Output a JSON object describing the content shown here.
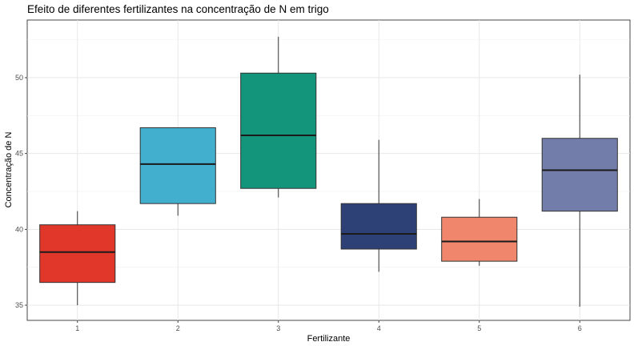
{
  "chart_data": {
    "type": "boxplot",
    "title": "Efeito de diferentes fertilizantes na concentração de N em trigo",
    "xlabel": "Fertilizante",
    "ylabel": "Concentração de N",
    "categories": [
      "1",
      "2",
      "3",
      "4",
      "5",
      "6"
    ],
    "ylim": [
      34,
      53.8
    ],
    "yticks": [
      35,
      40,
      45,
      50
    ],
    "grid": true,
    "legend": "none",
    "boxes": [
      {
        "category": "1",
        "min": 35.0,
        "q1": 36.5,
        "median": 38.5,
        "q3": 40.3,
        "max": 41.2,
        "color": "#E1362A"
      },
      {
        "category": "2",
        "min": 40.9,
        "q1": 41.7,
        "median": 44.3,
        "q3": 46.7,
        "max": 46.7,
        "color": "#42AFCE"
      },
      {
        "category": "3",
        "min": 42.1,
        "q1": 42.7,
        "median": 46.2,
        "q3": 50.3,
        "max": 52.7,
        "color": "#12957A"
      },
      {
        "category": "4",
        "min": 37.2,
        "q1": 38.7,
        "median": 39.7,
        "q3": 41.7,
        "max": 45.9,
        "color": "#2D4176"
      },
      {
        "category": "5",
        "min": 37.6,
        "q1": 37.9,
        "median": 39.2,
        "q3": 40.8,
        "max": 42.0,
        "color": "#F0876D"
      },
      {
        "category": "6",
        "min": 34.9,
        "q1": 41.2,
        "median": 43.9,
        "q3": 46.0,
        "max": 50.2,
        "color": "#727DA9"
      }
    ]
  }
}
